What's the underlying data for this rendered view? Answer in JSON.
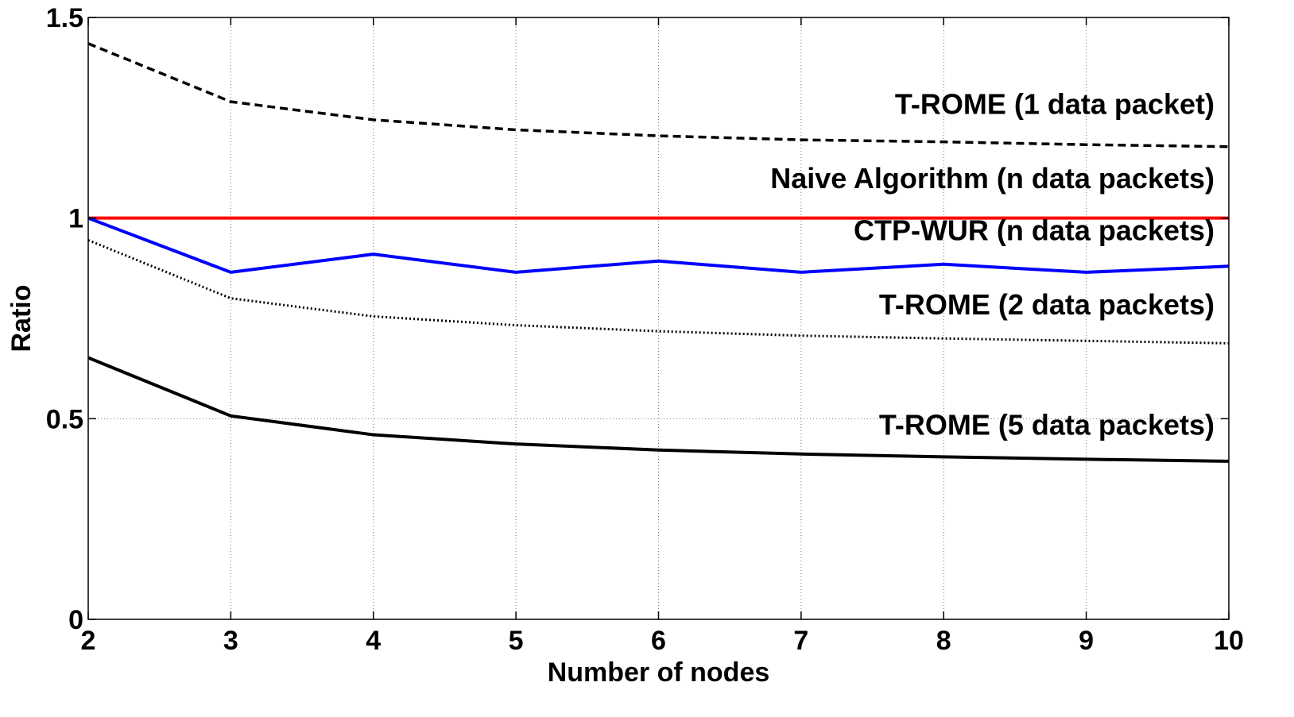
{
  "chart_data": {
    "type": "line",
    "title": "",
    "xlabel": "Number of nodes",
    "ylabel": "Ratio",
    "x": [
      2,
      3,
      4,
      5,
      6,
      7,
      8,
      9,
      10
    ],
    "xlim": [
      2,
      10
    ],
    "ylim": [
      0,
      1.5
    ],
    "xticks": [
      2,
      3,
      4,
      5,
      6,
      7,
      8,
      9,
      10
    ],
    "yticks": [
      0,
      0.5,
      1,
      1.5
    ],
    "ytick_labels": [
      "0",
      "0.5",
      "1",
      "1.5"
    ],
    "grid": true,
    "series": [
      {
        "name": "T-ROME (1 data packet)",
        "color": "#000000",
        "style": "dashed",
        "values": [
          1.435,
          1.29,
          1.245,
          1.22,
          1.205,
          1.195,
          1.19,
          1.183,
          1.178
        ]
      },
      {
        "name": "Naive Algorithm (n data packets)",
        "color": "#ff0000",
        "style": "solid",
        "values": [
          1.0,
          1.0,
          1.0,
          1.0,
          1.0,
          1.0,
          1.0,
          1.0,
          1.0
        ]
      },
      {
        "name": "CTP-WUR (n data packets)",
        "color": "#0000ff",
        "style": "solid",
        "values": [
          1.0,
          0.865,
          0.91,
          0.865,
          0.893,
          0.865,
          0.885,
          0.865,
          0.88
        ]
      },
      {
        "name": "T-ROME (2 data packets)",
        "color": "#000000",
        "style": "dotted",
        "values": [
          0.945,
          0.8,
          0.755,
          0.733,
          0.718,
          0.707,
          0.7,
          0.694,
          0.688
        ]
      },
      {
        "name": "T-ROME (5 data packets)",
        "color": "#000000",
        "style": "solid",
        "values": [
          0.652,
          0.507,
          0.46,
          0.437,
          0.422,
          0.412,
          0.405,
          0.399,
          0.394
        ]
      }
    ],
    "annotations": [
      {
        "text": "T-ROME (1 data packet)",
        "x": 10,
        "y": 1.26
      },
      {
        "text": "Naive Algorithm (n data packets)",
        "x": 10,
        "y": 1.075
      },
      {
        "text": "CTP-WUR (n data packets)",
        "x": 10,
        "y": 0.945
      },
      {
        "text": "T-ROME (2 data packets)",
        "x": 10,
        "y": 0.76
      },
      {
        "text": "T-ROME (5 data packets)",
        "x": 10,
        "y": 0.46
      }
    ]
  }
}
